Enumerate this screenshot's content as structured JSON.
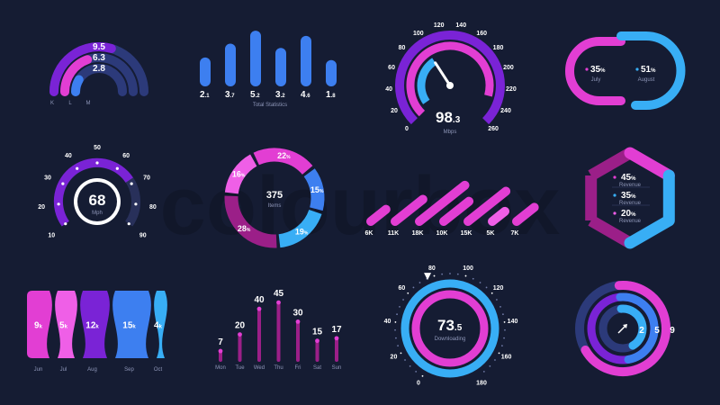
{
  "watermark": "colourbox",
  "colors": {
    "background": "#151c33",
    "purple": "#7a23d6",
    "magenta": "#e23ed3",
    "pink": "#ef5fe7",
    "blue": "#3d7ff0",
    "cyan": "#38aef5",
    "navy": "#2c3a7a",
    "dark_magenta": "#9b1f88",
    "track": "#28305a"
  },
  "chart_data": [
    {
      "id": "kpi-arcs",
      "type": "radial-bar",
      "series": [
        {
          "name": "K",
          "value": 9.5,
          "label": "9.5"
        },
        {
          "name": "L",
          "value": 6.3,
          "label": "6.3"
        },
        {
          "name": "M",
          "value": 2.8,
          "label": "2.8"
        }
      ],
      "category_labels": [
        "K",
        "L",
        "M"
      ]
    },
    {
      "id": "total-statistics",
      "type": "bar",
      "title": "Total Statistics",
      "values": [
        2.1,
        3.7,
        5.2,
        3.2,
        4.6,
        1.8
      ],
      "value_labels": [
        [
          "2",
          ".1"
        ],
        [
          "3",
          ".7"
        ],
        [
          "5",
          ".2"
        ],
        [
          "3",
          ".2"
        ],
        [
          "4",
          ".6"
        ],
        [
          "1",
          ".8"
        ]
      ]
    },
    {
      "id": "speed-gauge",
      "type": "gauge",
      "value": 98.3,
      "value_main": "98",
      "value_decimal": ".3",
      "unit": "Mbps",
      "min": 0,
      "max": 260,
      "ticks": [
        "0",
        "20",
        "40",
        "60",
        "80",
        "100",
        "120",
        "140",
        "160",
        "180",
        "200",
        "220",
        "240",
        "260"
      ]
    },
    {
      "id": "monthly-rings",
      "type": "donut",
      "items": [
        {
          "label": "July",
          "value": 35,
          "value_text": "35",
          "unit": "%"
        },
        {
          "label": "August",
          "value": 51,
          "value_text": "51",
          "unit": "%"
        }
      ]
    },
    {
      "id": "mph-gauge",
      "type": "gauge",
      "value": 68,
      "value_text": "68",
      "unit": "Mph",
      "min": 10,
      "max": 90,
      "ticks": [
        "10",
        "20",
        "30",
        "40",
        "50",
        "60",
        "70",
        "80",
        "90"
      ]
    },
    {
      "id": "items-donut",
      "type": "pie",
      "center_value": "375",
      "center_label": "Items",
      "slices": [
        {
          "value": 22,
          "label": "22",
          "unit": "%"
        },
        {
          "value": 15,
          "label": "15",
          "unit": "%"
        },
        {
          "value": 19,
          "label": "19",
          "unit": "%"
        },
        {
          "value": 28,
          "label": "28",
          "unit": "%"
        },
        {
          "value": 16,
          "label": "16",
          "unit": "%"
        }
      ]
    },
    {
      "id": "slanted-bars",
      "type": "bar",
      "categories": [
        "6K",
        "11K",
        "18K",
        "10K",
        "15K",
        "5K",
        "7K"
      ],
      "values": [
        6,
        11,
        18,
        10,
        15,
        5,
        7
      ]
    },
    {
      "id": "revenue-hexagon",
      "type": "pie",
      "items": [
        {
          "value": 45,
          "value_text": "45",
          "unit": "%",
          "label": "Revenue"
        },
        {
          "value": 35,
          "value_text": "35",
          "unit": "%",
          "label": "Revenue"
        },
        {
          "value": 20,
          "value_text": "20",
          "unit": "%",
          "label": "Revenue"
        }
      ]
    },
    {
      "id": "wave-stream",
      "type": "area",
      "categories": [
        "Jun",
        "Jul",
        "Aug",
        "Sep",
        "Oct"
      ],
      "values": [
        9,
        5,
        12,
        15,
        4
      ],
      "unit": "k"
    },
    {
      "id": "weekday-lollipop",
      "type": "bar",
      "categories": [
        "Mon",
        "Tue",
        "Wed",
        "Thu",
        "Fri",
        "Sat",
        "Sun"
      ],
      "values": [
        7,
        20,
        40,
        45,
        30,
        15,
        17
      ]
    },
    {
      "id": "download-gauge",
      "type": "gauge",
      "value": 73.5,
      "value_main": "73",
      "value_decimal": ".5",
      "label": "Downloading",
      "min": 0,
      "max": 180,
      "ticks": [
        "0",
        "20",
        "40",
        "60",
        "80",
        "100",
        "120",
        "140",
        "160",
        "180"
      ]
    },
    {
      "id": "concentric-rings",
      "type": "radial-bar",
      "values": [
        2,
        5,
        9
      ],
      "labels": [
        "2",
        "5",
        "9"
      ]
    }
  ]
}
